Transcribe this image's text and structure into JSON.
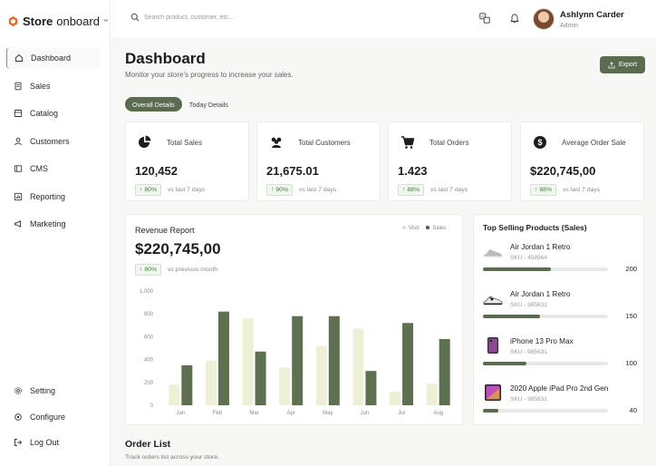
{
  "brand": {
    "name_bold": "Store",
    "name_light": "onboard",
    "tm": "™"
  },
  "search": {
    "placeholder": "Search product, customer, etc..."
  },
  "user": {
    "name": "Ashlynn Carder",
    "role": "Admin"
  },
  "sidebar": {
    "items": [
      {
        "label": "Dashboard",
        "icon": "home-icon"
      },
      {
        "label": "Sales",
        "icon": "receipt-icon"
      },
      {
        "label": "Catalog",
        "icon": "catalog-icon"
      },
      {
        "label": "Customers",
        "icon": "user-icon"
      },
      {
        "label": "CMS",
        "icon": "cms-icon"
      },
      {
        "label": "Reporting",
        "icon": "report-icon"
      },
      {
        "label": "Marketing",
        "icon": "megaphone-icon"
      }
    ],
    "bottom": [
      {
        "label": "Setting",
        "icon": "gear-icon"
      },
      {
        "label": "Configure",
        "icon": "configure-icon"
      },
      {
        "label": "Log Out",
        "icon": "logout-icon"
      }
    ]
  },
  "header": {
    "title": "Dashboard",
    "subtitle": "Monitor your store's progress to increase your sales.",
    "export_label": "Export"
  },
  "tabs": [
    "Overall Details",
    "Today Details"
  ],
  "stats": [
    {
      "label": "Total Sales",
      "value": "120,452",
      "change": "80%",
      "compare": "vs last 7 days",
      "icon": "pie-chart-icon"
    },
    {
      "label": "Total Customers",
      "value": "21,675.01",
      "change": "90%",
      "compare": "vs last 7 days",
      "icon": "users-icon"
    },
    {
      "label": "Total Orders",
      "value": "1.423",
      "change": "88%",
      "compare": "vs last 7 days",
      "icon": "cart-icon"
    },
    {
      "label": "Average Order Sale",
      "value": "$220,745,00",
      "change": "88%",
      "compare": "vs last 7 days",
      "icon": "dollar-icon"
    }
  ],
  "revenue": {
    "title": "Revenue Report",
    "value": "$220,745,00",
    "change": "80%",
    "compare": "vs previous month",
    "legend": [
      "Visit",
      "Sales"
    ]
  },
  "chart_data": {
    "type": "bar",
    "categories": [
      "Jan",
      "Feb",
      "Mar",
      "Apr",
      "May",
      "Jun",
      "Jul",
      "Aug"
    ],
    "series": [
      {
        "name": "Visit",
        "values": [
          180,
          390,
          760,
          330,
          520,
          670,
          120,
          190
        ]
      },
      {
        "name": "Sales",
        "values": [
          350,
          820,
          470,
          780,
          780,
          300,
          720,
          580
        ]
      }
    ],
    "ylim": [
      0,
      1000
    ],
    "yticks": [
      "0",
      "200",
      "400",
      "600",
      "800",
      "1,000"
    ],
    "colors": {
      "Visit": "#eef0d6",
      "Sales": "#5d7050"
    }
  },
  "top_selling": {
    "title": "Top Selling Products (Sales)",
    "max": 400,
    "products": [
      {
        "name": "Air Jordan 1 Retro",
        "sku": "SKU - 458964",
        "count": 200,
        "fill": 0.54,
        "icon": "sneaker-gray-icon"
      },
      {
        "name": "Air Jordan 1 Retro",
        "sku": "SKU - 985631",
        "count": 150,
        "fill": 0.46,
        "icon": "sneaker-black-icon"
      },
      {
        "name": "iPhone 13 Pro Max",
        "sku": "SKU - 985631",
        "count": 100,
        "fill": 0.35,
        "icon": "phone-icon"
      },
      {
        "name": "2020 Apple iPad Pro 2nd Gen",
        "sku": "SKU - 985631",
        "count": 40,
        "fill": 0.12,
        "icon": "tablet-icon"
      }
    ]
  },
  "orders": {
    "title": "Order List",
    "subtitle": "Track orders list across your store."
  }
}
